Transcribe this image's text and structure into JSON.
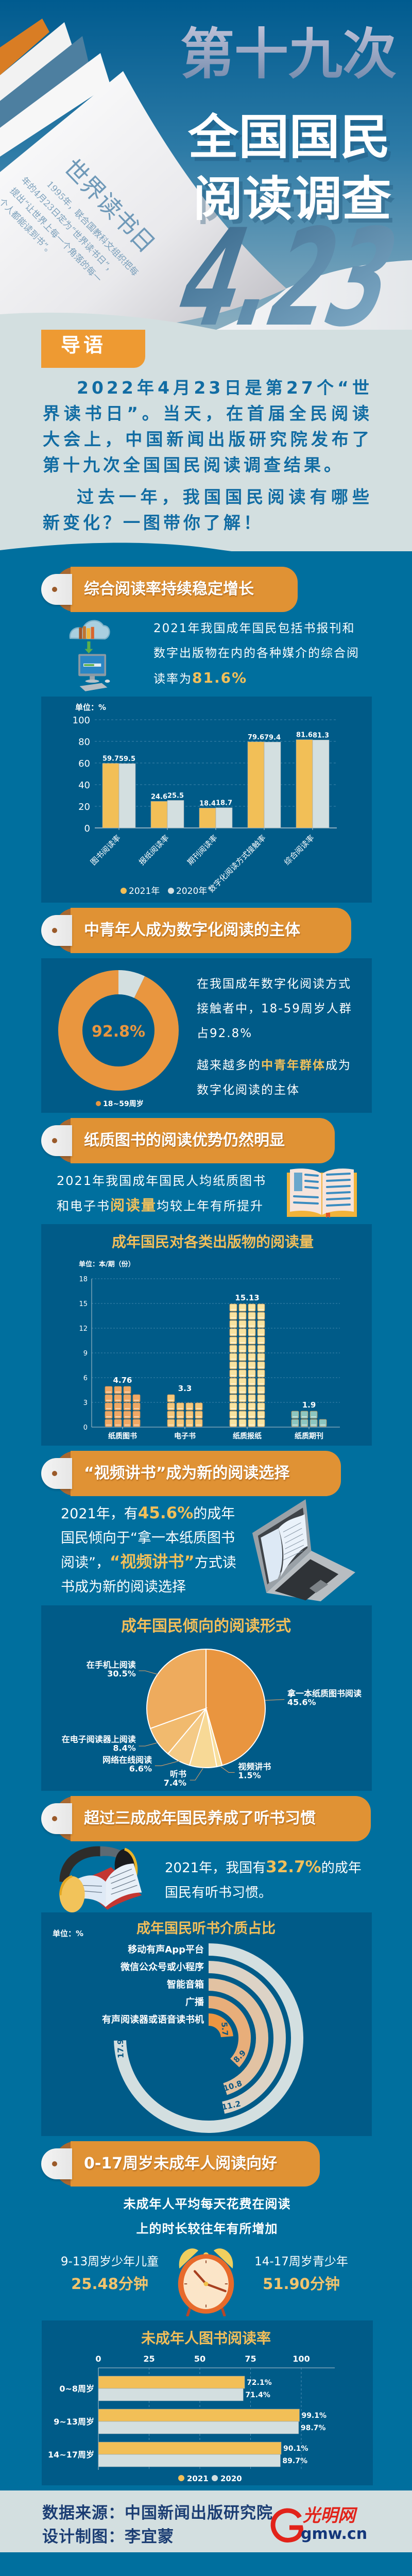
{
  "hero": {
    "title_line1": "第十九次",
    "title_line2": "全国国民",
    "title_line3": "阅读调查",
    "page_heading": "世界读书日",
    "page_text": [
      "1995年，联合国教科文组织把每",
      "年的4月23日定为“世界读书日”，",
      "提出“让世界上每一个角落的每一",
      "个人都能读到书”。"
    ],
    "date_numeral": "4.23"
  },
  "intro": {
    "tag": "导语",
    "paragraphs": [
      "2022年4月23日是第27个“世界读书日”。当天，在首届全民阅读大会上，中国新闻出版研究院发布了第十九次全国国民阅读调查结果。",
      "过去一年，我国国民阅读有哪些新变化？一图带你了解！"
    ]
  },
  "sections": [
    {
      "tag": "综合阅读率持续稳定增长",
      "text": "2021年我国成年国民包括书报刊和数字出版物在内的各种媒介的综合阅读率为",
      "highlight": "81.6%"
    },
    {
      "tag": "中青年人成为数字化阅读的主体",
      "text1": "在我国成年数字化阅读方式接触者中，18-59周岁人群占92.8%",
      "text2_before": "越来越多的",
      "highlight": "中青年群体",
      "text2_after": "成为数字化阅读的主体"
    },
    {
      "tag": "纸质图书的阅读优势仍然明显",
      "text_before": "2021年我国成年国民人均纸质图书和电子书",
      "highlight": "阅读量",
      "text_after": "均较上年有所提升"
    },
    {
      "tag": "“视频讲书”成为新的阅读选择",
      "text_before": "2021年，有",
      "highlight1": "45.6%",
      "text_mid": "的成年国民倾向于“拿一本纸质图书阅读”，",
      "highlight2": "“视频讲书”",
      "text_after": "方式读书成为新的阅读选择"
    },
    {
      "tag": "超过三成成年国民养成了听书习惯",
      "text_before": "2021年，我国有",
      "highlight": "32.7%",
      "text_after": "的成年国民有听书习惯。"
    },
    {
      "tag": "0-17周岁未成年人阅读向好",
      "text": "未成年人平均每天花费在阅读上的时长较往年有所增加",
      "left_label": "9-13周岁少年儿童",
      "left_value": "25.48分钟",
      "right_label": "14-17周岁青少年",
      "right_value": "51.90分钟"
    }
  ],
  "chart_data": [
    {
      "type": "bar",
      "unit_label": "单位：%",
      "categories": [
        "图书阅读率",
        "报纸阅读率",
        "期刊阅读率",
        "数字化阅读方式接触率",
        "综合阅读率"
      ],
      "series": [
        {
          "name": "2021年",
          "values": [
            59.7,
            24.6,
            18.4,
            79.6,
            81.6
          ],
          "color": "#f2bf57"
        },
        {
          "name": "2020年",
          "values": [
            59.5,
            25.5,
            18.7,
            79.4,
            81.3
          ],
          "color": "#d3dfe0"
        }
      ],
      "yticks": [
        "0",
        "20",
        "40",
        "60",
        "80",
        "100"
      ],
      "ylim": [
        0,
        100
      ],
      "grid": true,
      "legend": "bottom"
    },
    {
      "type": "pie",
      "donut": true,
      "center_label": "92.8%",
      "slices": [
        {
          "name": "18~59周岁",
          "value": 92.8,
          "color": "#e9963f"
        },
        {
          "name": "",
          "value": 7.2,
          "color": "#d3dfe0"
        }
      ],
      "legend_label": "18~59周岁",
      "legend": "bottom-left"
    },
    {
      "type": "bar",
      "style": "pictograph",
      "title": "成年国民对各类出版物的阅读量",
      "unit_label": "单位：本/期（份）",
      "categories": [
        "纸质图书",
        "电子书",
        "纸质报纸",
        "纸质期刊"
      ],
      "values": [
        4.76,
        3.3,
        15.13,
        1.9
      ],
      "value_labels": [
        "4.76",
        "3.3",
        "15.13",
        "1.9"
      ],
      "colors": [
        "#f0a865",
        "#f5c77a",
        "#f8e3a0",
        "#8cc6c0"
      ],
      "yticks": [
        "0",
        "3",
        "6",
        "9",
        "12",
        "15",
        "18"
      ],
      "ylim": [
        0,
        18
      ],
      "grid": true
    },
    {
      "type": "pie",
      "title": "成年国民倾向的阅读形式",
      "slices": [
        {
          "name": "拿一本纸质图书阅读",
          "value": 45.6,
          "label": "45.6%",
          "color": "#e9953f"
        },
        {
          "name": "视频讲书",
          "value": 1.5,
          "label": "1.5%",
          "color": "#f8de9c"
        },
        {
          "name": "听书",
          "value": 7.4,
          "label": "7.4%",
          "color": "#f7d996"
        },
        {
          "name": "网络在线阅读",
          "value": 6.6,
          "label": "6.6%",
          "color": "#f4ca86"
        },
        {
          "name": "在电子阅读器上阅读",
          "value": 8.4,
          "label": "8.4%",
          "color": "#f1ba6e"
        },
        {
          "name": "在手机上阅读",
          "value": 30.5,
          "label": "30.5%",
          "color": "#eeab5d"
        }
      ]
    },
    {
      "type": "bar",
      "style": "radial",
      "title": "成年国民听书介质占比",
      "unit_label": "单位：%",
      "categories": [
        "移动有声App平台",
        "微信公众号或小程序",
        "智能音箱",
        "广播",
        "有声阅读器或语音读书机"
      ],
      "values": [
        17.9,
        11.2,
        10.8,
        8.9,
        5.7
      ],
      "value_labels": [
        "17.9",
        "11.2",
        "10.8",
        "8.9",
        "5.7"
      ],
      "colors": [
        "#d3dfe0",
        "#dcd3c6",
        "#e2c2a2",
        "#e8ae7a",
        "#ec9642"
      ]
    },
    {
      "type": "bar",
      "orientation": "horizontal",
      "title": "未成年人图书阅读率",
      "categories": [
        "0~8周岁",
        "9~13周岁",
        "14~17周岁"
      ],
      "series": [
        {
          "name": "2021",
          "values": [
            72.1,
            99.1,
            90.1
          ],
          "labels": [
            "72.1%",
            "99.1%",
            "90.1%"
          ],
          "color": "#f2bf57"
        },
        {
          "name": "2020",
          "values": [
            71.4,
            98.7,
            89.7
          ],
          "labels": [
            "71.4%",
            "98.7%",
            "89.7%"
          ],
          "color": "#d3dfe0"
        }
      ],
      "xticks": [
        "0",
        "25",
        "50",
        "75",
        "100"
      ],
      "xlim": [
        0,
        100
      ],
      "grid": true,
      "legend": "bottom"
    }
  ],
  "footer": {
    "source": "数据来源：中国新闻出版研究院",
    "designer": "设计制图：李宜蒙",
    "logo_cn": "光明网",
    "logo_domain": "gmw.cn"
  },
  "colors": {
    "background": "#006f9e",
    "panel": "#005b88",
    "accent_orange": "#e09234",
    "highlight": "#f2c05a",
    "light": "#d3dfe0"
  }
}
